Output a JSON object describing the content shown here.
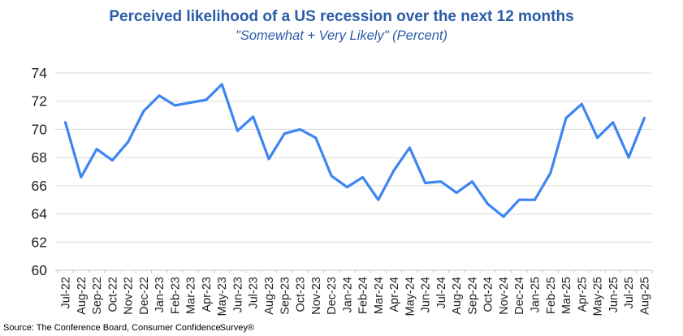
{
  "header": {
    "title": "Perceived likelihood of a US recession over the next 12 months",
    "subtitle": "\"Somewhat + Very Likely\" (Percent)"
  },
  "chart_data": {
    "type": "line",
    "title": "Perceived likelihood of a US recession over the next 12 months",
    "subtitle": "\"Somewhat + Very Likely\" (Percent)",
    "categories": [
      "Jul-22",
      "Aug-22",
      "Sep-22",
      "Oct-22",
      "Nov-22",
      "Dec-22",
      "Jan-23",
      "Feb-23",
      "Mar-23",
      "Apr-23",
      "May-23",
      "Jun-23",
      "Jul-23",
      "Aug-23",
      "Sep-23",
      "Oct-23",
      "Nov-23",
      "Dec-23",
      "Jan-24",
      "Feb-24",
      "Mar-24",
      "Apr-24",
      "May-24",
      "Jun-24",
      "Jul-24",
      "Aug-24",
      "Sep-24",
      "Oct-24",
      "Nov-24",
      "Dec-24",
      "Jan-25",
      "Feb-25",
      "Mar-25",
      "Apr-25",
      "May-25",
      "Jun-25",
      "Jul-25",
      "Aug-25"
    ],
    "values": [
      70.5,
      66.6,
      68.6,
      67.8,
      69.1,
      71.3,
      72.4,
      71.7,
      71.9,
      72.1,
      73.2,
      69.9,
      70.9,
      67.9,
      69.7,
      70.0,
      69.4,
      66.7,
      65.9,
      66.6,
      65.0,
      67.1,
      68.7,
      66.2,
      66.3,
      65.5,
      66.3,
      64.7,
      63.8,
      65.0,
      65.0,
      66.9,
      70.8,
      71.8,
      69.4,
      70.5,
      68.0,
      70.8
    ],
    "xlabel": "",
    "ylabel": "",
    "ylim": [
      60,
      74
    ],
    "ytick_step": 2,
    "yticks": [
      60,
      62,
      64,
      66,
      68,
      70,
      72,
      74
    ],
    "grid": "horizontal",
    "legend": "none",
    "line_color": "#3E85F4"
  },
  "footer": {
    "source_text": "Source: The Conference Board, Consumer Confidence",
    "survey_text": "Survey®"
  },
  "colors": {
    "title": "#2B5CA9",
    "line": "#3E85F4",
    "grid": "#D9D9D9",
    "axis": "#C9C9C9",
    "tick_label": "#1F1F1F"
  }
}
